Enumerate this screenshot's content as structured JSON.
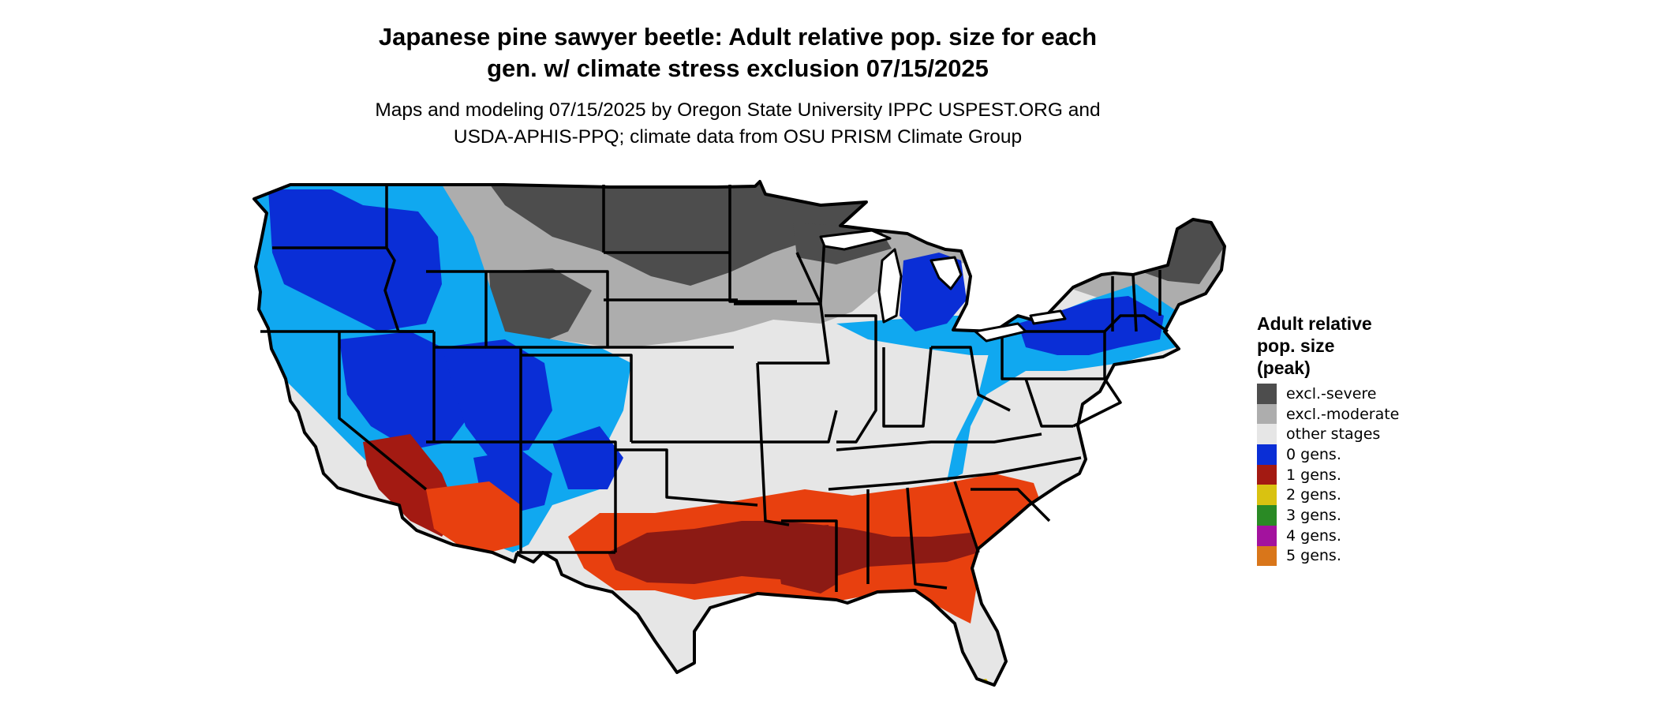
{
  "title": {
    "line1": "Japanese pine sawyer beetle: Adult relative pop. size for each",
    "line2": "gen. w/ climate stress exclusion 07/15/2025"
  },
  "subtitle": {
    "line1": "Maps and modeling 07/15/2025 by Oregon State University IPPC USPEST.ORG and",
    "line2": "USDA-APHIS-PPQ; climate data from OSU PRISM Climate Group"
  },
  "legend": {
    "title_line1": "Adult relative",
    "title_line2": "pop. size",
    "title_line3": "(peak)",
    "items": [
      {
        "label": "excl.-severe",
        "color": "#4d4d4d"
      },
      {
        "label": "excl.-moderate",
        "color": "#adadad"
      },
      {
        "label": "other stages",
        "color": "#e6e6e6"
      },
      {
        "label": "0 gens.",
        "color": "#0a2ed6"
      },
      {
        "label": "1 gens.",
        "color": "#a31a12"
      },
      {
        "label": "2 gens.",
        "color": "#d9c211"
      },
      {
        "label": "3 gens.",
        "color": "#2a8a25"
      },
      {
        "label": "4 gens.",
        "color": "#a3129e"
      },
      {
        "label": "5 gens.",
        "color": "#d9761a"
      }
    ]
  },
  "map": {
    "region": "contiguous-united-states",
    "colors": {
      "state_border": "#000000",
      "severe": "#4d4d4d",
      "moderate": "#adadad",
      "other": "#e6e6e6",
      "gen0_dark": "#0a2ed6",
      "gen0_light": "#10a8f0",
      "gen1_dark": "#8c1a14",
      "gen1_light": "#e8400f",
      "gen2": "#d9c211"
    }
  }
}
